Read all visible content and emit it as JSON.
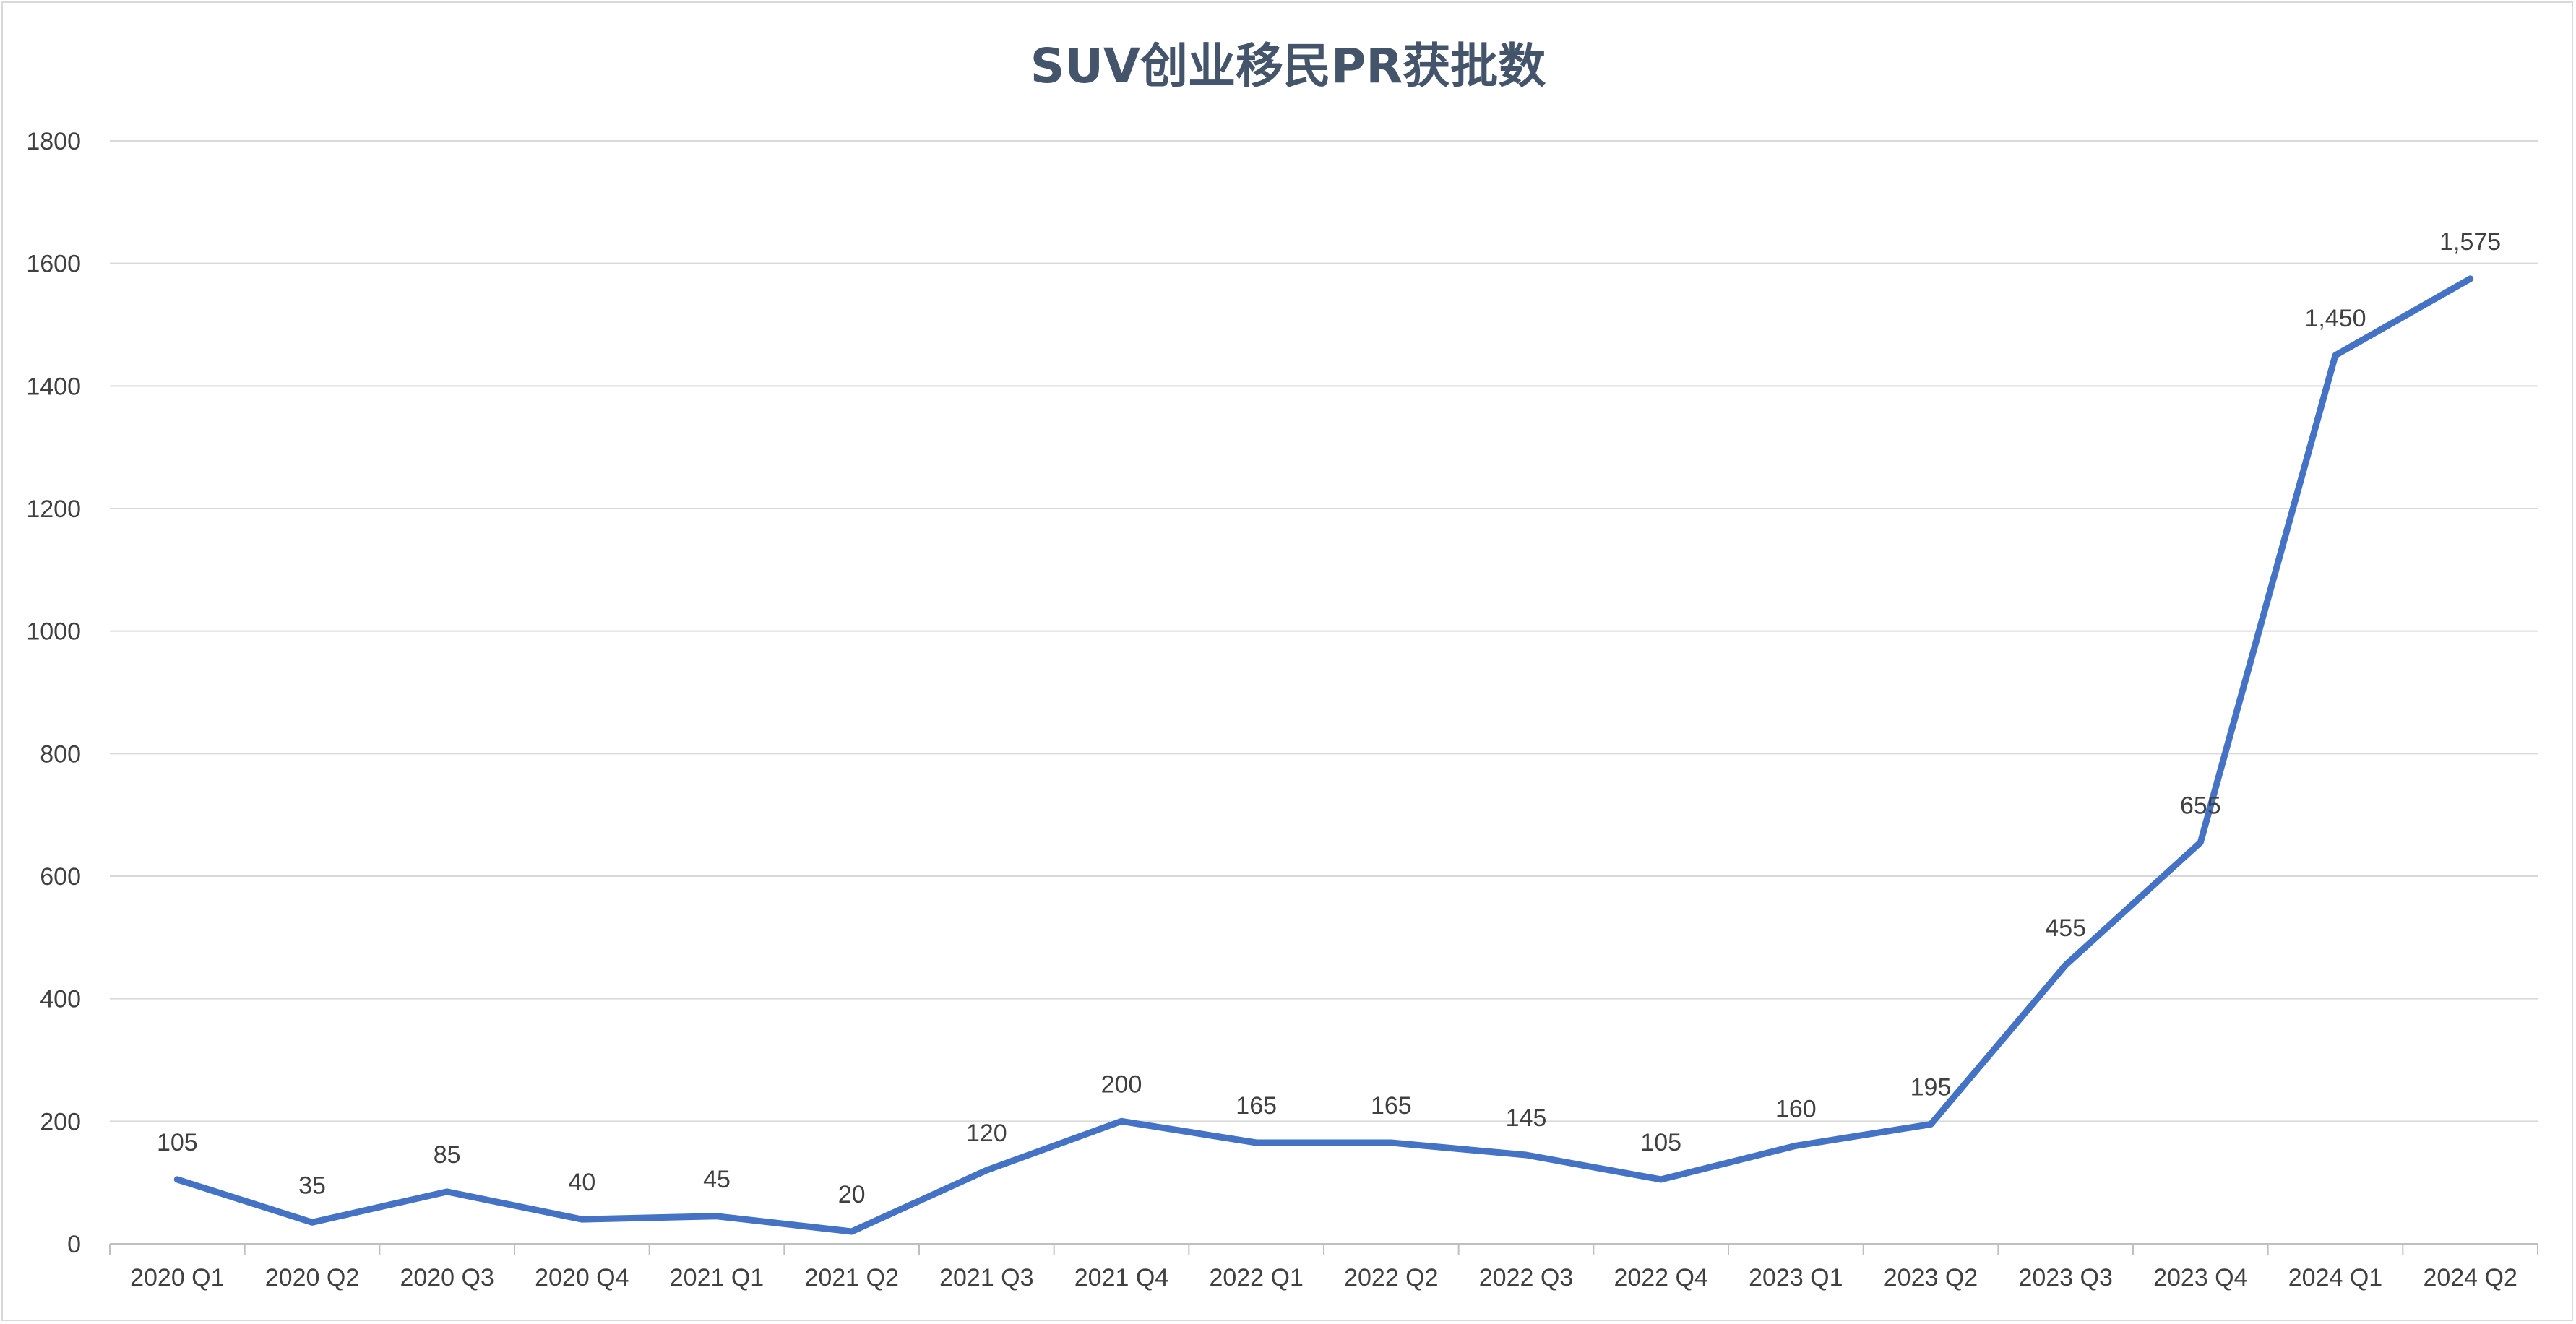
{
  "chart_data": {
    "type": "line",
    "title": "SUV创业移民PR获批数",
    "xlabel": "",
    "ylabel": "",
    "categories": [
      "2020 Q1",
      "2020 Q2",
      "2020 Q3",
      "2020 Q4",
      "2021 Q1",
      "2021 Q2",
      "2021 Q3",
      "2021 Q4",
      "2022 Q1",
      "2022 Q2",
      "2022 Q3",
      "2022 Q4",
      "2023 Q1",
      "2023 Q2",
      "2023 Q3",
      "2023 Q4",
      "2024 Q1",
      "2024 Q2"
    ],
    "series": [
      {
        "values": [
          105,
          35,
          85,
          40,
          45,
          20,
          120,
          200,
          165,
          165,
          145,
          105,
          160,
          195,
          455,
          655,
          1450,
          1575
        ],
        "data_labels": [
          "105",
          "35",
          "85",
          "40",
          "45",
          "20",
          "120",
          "200",
          "165",
          "165",
          "145",
          "105",
          "160",
          "195",
          "455",
          "655",
          "1,450",
          "1,575"
        ],
        "color": "#4472c4"
      }
    ],
    "ylim": [
      0,
      1800
    ],
    "yticks": [
      "0",
      "200",
      "400",
      "600",
      "800",
      "1000",
      "1200",
      "1400",
      "1600",
      "1800"
    ],
    "grid": true,
    "legend": "none"
  }
}
